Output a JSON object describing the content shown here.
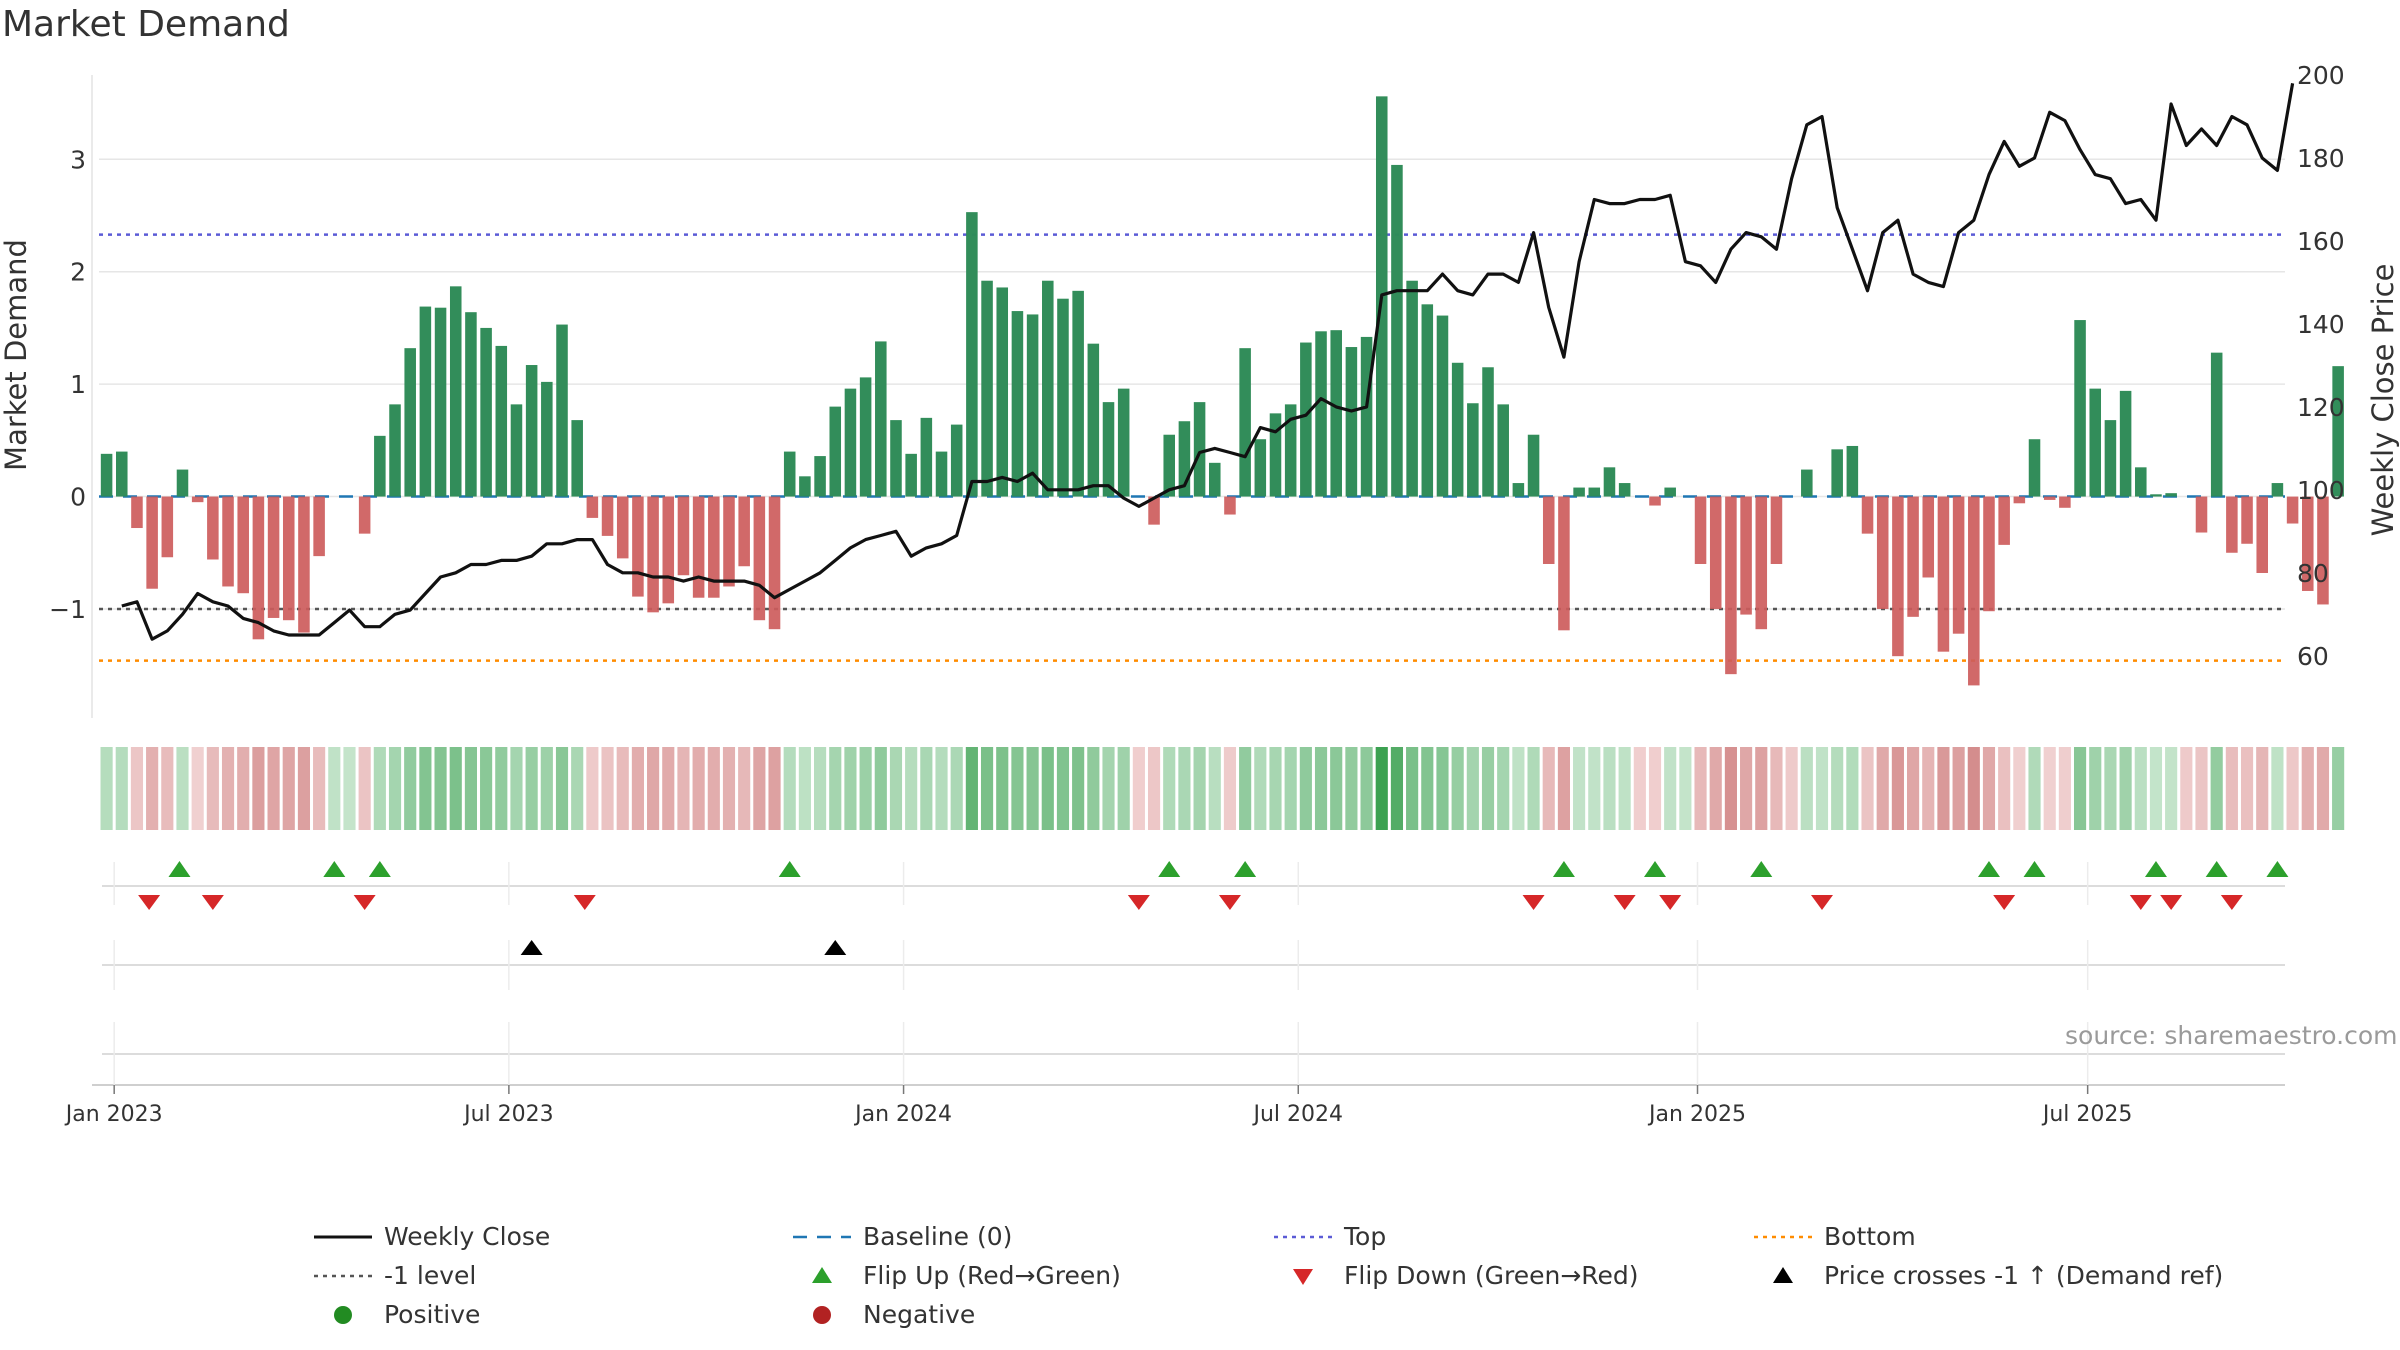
{
  "chart_data": {
    "type": "bar",
    "title": "Market Demand",
    "ylabel": "Market Demand",
    "y2label": "Weekly Close Price",
    "ylim": [
      -1.97,
      3.75
    ],
    "y2lim": [
      45,
      200
    ],
    "yticks": [
      {
        "v": 3,
        "label": "3"
      },
      {
        "v": 2,
        "label": "2"
      },
      {
        "v": 1,
        "label": "1"
      },
      {
        "v": 0,
        "label": "0"
      },
      {
        "v": -1,
        "label": "−1"
      }
    ],
    "y2ticks": [
      {
        "v": 200,
        "label": "200"
      },
      {
        "v": 180,
        "label": "180"
      },
      {
        "v": 160,
        "label": "160"
      },
      {
        "v": 140,
        "label": "140"
      },
      {
        "v": 120,
        "label": "120"
      },
      {
        "v": 100,
        "label": "100"
      },
      {
        "v": 80,
        "label": "80"
      },
      {
        "v": 60,
        "label": "60"
      }
    ],
    "x_start_week_offset": -1,
    "weeks_total": 144,
    "xticks": [
      {
        "week": 0,
        "label": "Jan 2023"
      },
      {
        "week": 26,
        "label": "Jul 2023"
      },
      {
        "week": 52,
        "label": "Jan 2024"
      },
      {
        "week": 78,
        "label": "Jul 2024"
      },
      {
        "week": 104.3,
        "label": "Jan 2025"
      },
      {
        "week": 130,
        "label": "Jul 2025"
      }
    ],
    "reference_lines": {
      "top": 2.33,
      "bottom": -1.46,
      "minus_one": -1,
      "baseline": 0
    },
    "demand": [
      0.38,
      0.4,
      -0.28,
      -0.82,
      -0.54,
      0.24,
      -0.05,
      -0.56,
      -0.8,
      -0.86,
      -1.27,
      -1.08,
      -1.1,
      -1.21,
      -0.53,
      0.0,
      0.0,
      -0.33,
      0.54,
      0.82,
      1.32,
      1.69,
      1.68,
      1.87,
      1.64,
      1.5,
      1.34,
      0.82,
      1.17,
      1.02,
      1.53,
      0.68,
      -0.19,
      -0.35,
      -0.55,
      -0.89,
      -1.03,
      -0.95,
      -0.7,
      -0.9,
      -0.9,
      -0.8,
      -0.62,
      -1.1,
      -1.18,
      0.4,
      0.18,
      0.36,
      0.8,
      0.96,
      1.06,
      1.38,
      0.68,
      0.38,
      0.7,
      0.4,
      0.64,
      2.53,
      1.92,
      1.86,
      1.65,
      1.62,
      1.92,
      1.76,
      1.83,
      1.36,
      0.84,
      0.96,
      0.0,
      -0.25,
      0.55,
      0.67,
      0.84,
      0.3,
      -0.16,
      1.32,
      0.51,
      0.74,
      0.82,
      1.37,
      1.47,
      1.48,
      1.33,
      1.42,
      3.56,
      2.95,
      1.92,
      1.71,
      1.61,
      1.19,
      0.83,
      1.15,
      0.82,
      0.12,
      0.55,
      -0.6,
      -1.19,
      0.08,
      0.08,
      0.26,
      0.12,
      0.0,
      -0.08,
      0.08,
      0.0,
      -0.6,
      -1.0,
      -1.58,
      -1.05,
      -1.18,
      -0.6,
      0.0,
      0.24,
      0.0,
      0.42,
      0.45,
      -0.33,
      -1.0,
      -1.42,
      -1.07,
      -0.72,
      -1.38,
      -1.22,
      -1.68,
      -1.02,
      -0.43,
      -0.06,
      0.51,
      -0.03,
      -0.1,
      1.57,
      0.96,
      0.68,
      0.94,
      0.26,
      0.02,
      0.03,
      0.0,
      -0.32,
      1.28,
      -0.5,
      -0.42,
      -0.68,
      0.12,
      -0.24,
      -0.84,
      -0.96,
      1.16
    ],
    "weekly_close": [
      [
        0,
        72
      ],
      [
        1,
        73
      ],
      [
        2,
        64
      ],
      [
        3,
        66
      ],
      [
        4,
        70
      ],
      [
        5,
        75
      ],
      [
        6,
        73
      ],
      [
        7,
        72
      ],
      [
        8,
        69
      ],
      [
        9,
        68
      ],
      [
        10,
        66
      ],
      [
        11,
        65
      ],
      [
        12,
        65
      ],
      [
        13,
        65
      ],
      [
        14,
        68
      ],
      [
        15,
        71
      ],
      [
        16,
        67
      ],
      [
        17,
        67
      ],
      [
        18,
        70
      ],
      [
        19,
        71
      ],
      [
        20,
        75
      ],
      [
        21,
        79
      ],
      [
        22,
        80
      ],
      [
        23,
        82
      ],
      [
        24,
        82
      ],
      [
        25,
        83
      ],
      [
        26,
        83
      ],
      [
        27,
        84
      ],
      [
        28,
        87
      ],
      [
        29,
        87
      ],
      [
        30,
        88
      ],
      [
        31,
        88
      ],
      [
        32,
        82
      ],
      [
        33,
        80
      ],
      [
        34,
        80
      ],
      [
        35,
        79
      ],
      [
        36,
        79
      ],
      [
        37,
        78
      ],
      [
        38,
        79
      ],
      [
        39,
        78
      ],
      [
        40,
        78
      ],
      [
        41,
        78
      ],
      [
        42,
        77
      ],
      [
        43,
        74
      ],
      [
        44,
        76
      ],
      [
        45,
        78
      ],
      [
        46,
        80
      ],
      [
        47,
        83
      ],
      [
        48,
        86
      ],
      [
        49,
        88
      ],
      [
        50,
        89
      ],
      [
        51,
        90
      ],
      [
        52,
        84
      ],
      [
        53,
        86
      ],
      [
        54,
        87
      ],
      [
        55,
        89
      ],
      [
        56,
        102
      ],
      [
        57,
        102
      ],
      [
        58,
        103
      ],
      [
        59,
        102
      ],
      [
        60,
        104
      ],
      [
        61,
        100
      ],
      [
        62,
        100
      ],
      [
        63,
        100
      ],
      [
        64,
        101
      ],
      [
        65,
        101
      ],
      [
        66,
        98
      ],
      [
        67,
        96
      ],
      [
        68,
        98
      ],
      [
        69,
        100
      ],
      [
        70,
        101
      ],
      [
        71,
        109
      ],
      [
        72,
        110
      ],
      [
        73,
        109
      ],
      [
        74,
        108
      ],
      [
        75,
        115
      ],
      [
        76,
        114
      ],
      [
        77,
        117
      ],
      [
        78,
        118
      ],
      [
        79,
        122
      ],
      [
        80,
        120
      ],
      [
        81,
        119
      ],
      [
        82,
        120
      ],
      [
        83,
        147
      ],
      [
        84,
        148
      ],
      [
        85,
        148
      ],
      [
        86,
        148
      ],
      [
        87,
        152
      ],
      [
        88,
        148
      ],
      [
        89,
        147
      ],
      [
        90,
        152
      ],
      [
        91,
        152
      ],
      [
        92,
        150
      ],
      [
        93,
        162
      ],
      [
        94,
        144
      ],
      [
        95,
        132
      ],
      [
        96,
        155
      ],
      [
        97,
        170
      ],
      [
        98,
        169
      ],
      [
        99,
        169
      ],
      [
        100,
        170
      ],
      [
        101,
        170
      ],
      [
        102,
        171
      ],
      [
        103,
        155
      ],
      [
        104,
        154
      ],
      [
        105,
        150
      ],
      [
        106,
        158
      ],
      [
        107,
        162
      ],
      [
        108,
        161
      ],
      [
        109,
        158
      ],
      [
        110,
        175
      ],
      [
        111,
        188
      ],
      [
        112,
        190
      ],
      [
        113,
        168
      ],
      [
        114,
        158
      ],
      [
        115,
        148
      ],
      [
        116,
        162
      ],
      [
        117,
        165
      ],
      [
        118,
        152
      ],
      [
        119,
        150
      ],
      [
        120,
        149
      ],
      [
        121,
        162
      ],
      [
        122,
        165
      ],
      [
        123,
        176
      ],
      [
        124,
        184
      ],
      [
        125,
        178
      ],
      [
        126,
        180
      ],
      [
        127,
        191
      ],
      [
        128,
        189
      ],
      [
        129,
        182
      ],
      [
        130,
        176
      ],
      [
        131,
        175
      ],
      [
        132,
        169
      ],
      [
        133,
        170
      ],
      [
        134,
        165
      ],
      [
        135,
        193
      ],
      [
        136,
        183
      ],
      [
        137,
        187
      ],
      [
        138,
        183
      ],
      [
        139,
        190
      ],
      [
        140,
        188
      ],
      [
        141,
        180
      ],
      [
        142,
        177
      ],
      [
        143,
        198
      ]
    ],
    "heat_strip": [
      0.38,
      0.4,
      -0.28,
      -0.82,
      -0.54,
      0.24,
      -0.05,
      -0.56,
      -0.8,
      -0.86,
      -1.27,
      -1.08,
      -1.1,
      -1.21,
      -0.53,
      0.1,
      0.0,
      -0.33,
      0.54,
      0.82,
      1.32,
      1.69,
      1.68,
      1.87,
      1.64,
      1.5,
      1.34,
      0.82,
      1.17,
      1.02,
      1.53,
      0.68,
      -0.19,
      -0.35,
      -0.55,
      -0.89,
      -1.03,
      -0.95,
      -0.7,
      -0.9,
      -0.9,
      -0.8,
      -0.62,
      -1.1,
      -1.18,
      0.4,
      0.18,
      0.36,
      0.8,
      0.96,
      1.06,
      1.38,
      0.68,
      0.38,
      0.7,
      0.4,
      0.64,
      2.53,
      1.92,
      1.86,
      1.65,
      1.62,
      1.92,
      1.76,
      1.83,
      1.36,
      0.84,
      0.96,
      -0.08,
      -0.25,
      0.55,
      0.67,
      0.84,
      0.3,
      -0.16,
      1.32,
      0.51,
      0.74,
      0.82,
      1.37,
      1.47,
      1.48,
      1.33,
      1.42,
      3.56,
      2.95,
      1.92,
      1.71,
      1.61,
      1.19,
      0.83,
      1.15,
      0.82,
      0.12,
      0.55,
      -0.6,
      -1.19,
      0.08,
      0.08,
      0.26,
      0.12,
      -0.08,
      -0.08,
      0.08,
      0.0,
      -0.6,
      -1.0,
      -1.58,
      -1.05,
      -1.18,
      -0.6,
      -0.2,
      0.24,
      0.1,
      0.42,
      0.45,
      -0.33,
      -1.0,
      -1.42,
      -1.07,
      -0.72,
      -1.38,
      -1.22,
      -1.68,
      -1.02,
      -0.43,
      -0.06,
      0.51,
      -0.03,
      -0.1,
      1.57,
      0.96,
      0.68,
      0.94,
      0.26,
      0.02,
      0.03,
      -0.2,
      -0.32,
      1.28,
      -0.5,
      -0.42,
      -0.68,
      0.12,
      -0.24,
      -0.84,
      -0.96,
      1.16
    ],
    "flip_up_weeks": [
      3.8,
      14,
      17,
      44,
      69,
      74,
      95,
      101,
      108,
      123,
      126,
      134,
      138,
      142
    ],
    "flip_down_weeks": [
      1.8,
      6,
      16,
      30.5,
      67,
      73,
      93,
      99,
      102,
      112,
      124,
      133,
      135,
      139
    ],
    "price_cross_weeks": [
      27,
      47
    ],
    "legend": [
      "Weekly Close",
      "Baseline (0)",
      "Top",
      "Bottom",
      "-1 level",
      "Flip Up (Red→Green)",
      "Flip Down (Green→Red)",
      "Price crosses -1 ↑ (Demand ref)",
      "Positive",
      "Negative"
    ],
    "legend_position": "bottom",
    "source": "source: sharemaestro.com"
  },
  "colors": {
    "positive": "#2e8b57",
    "negative": "#cd5c5c",
    "price": "#111111",
    "baseline": "#1f77b4",
    "top": "#5b5bd6",
    "bottom": "#ff8c00",
    "minus_one": "#555555",
    "flip_up": "#2ca02c",
    "flip_down": "#d62728",
    "cross": "#000000",
    "positive_dot": "#228b22",
    "negative_dot": "#b22222",
    "grid": "#e6e6e6"
  }
}
